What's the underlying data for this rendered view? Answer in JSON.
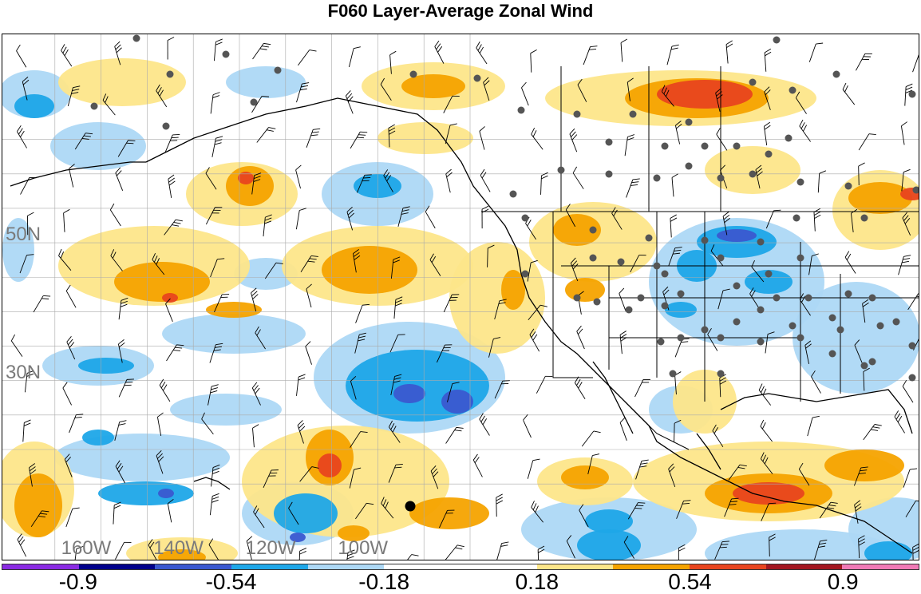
{
  "title": "F060 Layer-Average Zonal Wind",
  "lat_labels": [
    {
      "text": "50N",
      "lat": 50
    },
    {
      "text": "30N",
      "lat": 30
    }
  ],
  "lon_labels": [
    {
      "text": "160W",
      "lon": -160
    },
    {
      "text": "140W",
      "lon": -140
    },
    {
      "text": "120W",
      "lon": -120
    },
    {
      "text": "100W",
      "lon": -100
    }
  ],
  "colorbar": {
    "colors": [
      "#8a2be2",
      "#00008b",
      "#3a58d0",
      "#1ea7e8",
      "#add8f5",
      "#ffffff",
      "#ffffff",
      "#fde68a",
      "#f5a300",
      "#e8451e",
      "#a3161e",
      "#f07ab6"
    ],
    "labels": [
      "-0.9",
      "-0.54",
      "-0.18",
      "0.18",
      "0.54",
      "0.9"
    ]
  },
  "legend_colors": {
    "strong_negative": "#3a58d0",
    "negative": "#1ea7e8",
    "weak_negative": "#add8f5",
    "weak_positive": "#fde68a",
    "positive": "#f5a300",
    "strong_positive": "#e8451e",
    "station": "#555555"
  }
}
